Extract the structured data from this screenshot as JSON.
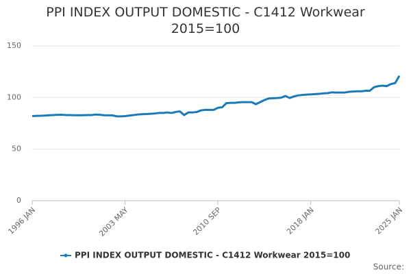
{
  "chart_data": {
    "type": "line",
    "title": "PPI INDEX OUTPUT DOMESTIC - C1412 Workwear 2015=100",
    "source": "Source:",
    "categories": [
      "1996 JAN",
      null,
      null,
      null,
      null,
      null,
      null,
      null,
      null,
      null,
      null,
      null,
      null,
      null,
      null,
      null,
      null,
      null,
      null,
      null,
      null,
      null,
      "2003 MAY",
      null,
      null,
      null,
      null,
      null,
      null,
      null,
      null,
      null,
      null,
      null,
      null,
      null,
      null,
      null,
      null,
      null,
      null,
      null,
      null,
      null,
      "2010 SEP",
      null,
      null,
      null,
      null,
      null,
      null,
      null,
      null,
      null,
      null,
      null,
      null,
      null,
      null,
      null,
      null,
      null,
      null,
      null,
      null,
      null,
      "2018 JAN",
      null,
      null,
      null,
      null,
      null,
      null,
      null,
      null,
      null,
      null,
      null,
      null,
      null,
      null,
      null,
      null,
      null,
      null,
      null,
      null,
      "2025 JAN"
    ],
    "series": [
      {
        "name": "PPI INDEX OUTPUT DOMESTIC - C1412 Workwear 2015=100",
        "color": "#1a7ab8",
        "values": [
          82,
          82.2,
          82.3,
          82.5,
          82.8,
          83,
          83.2,
          83.3,
          83,
          83,
          82.8,
          82.8,
          82.8,
          83,
          83,
          83.5,
          83.3,
          82.8,
          82.7,
          82.7,
          81.8,
          81.7,
          82,
          82.5,
          83,
          83.5,
          83.8,
          84,
          84.2,
          84.5,
          85,
          85,
          85.5,
          85,
          86,
          86.5,
          83,
          85.5,
          85.5,
          86,
          87.5,
          88,
          88,
          88,
          90,
          90.5,
          94.5,
          94.8,
          94.8,
          95.3,
          95.5,
          95.5,
          95.5,
          93.5,
          95.5,
          97.5,
          99,
          99.3,
          99.5,
          99.8,
          101.5,
          99.5,
          101,
          102,
          102.5,
          102.8,
          103,
          103.3,
          103.5,
          104,
          104.2,
          105,
          104.8,
          104.8,
          104.8,
          105.5,
          105.8,
          106,
          106,
          106.5,
          106.5,
          110,
          111,
          111.5,
          111,
          113,
          114,
          121
        ]
      }
    ],
    "ylim": [
      0,
      150
    ],
    "yticks": [
      0,
      50,
      100,
      150
    ],
    "grid": true
  }
}
